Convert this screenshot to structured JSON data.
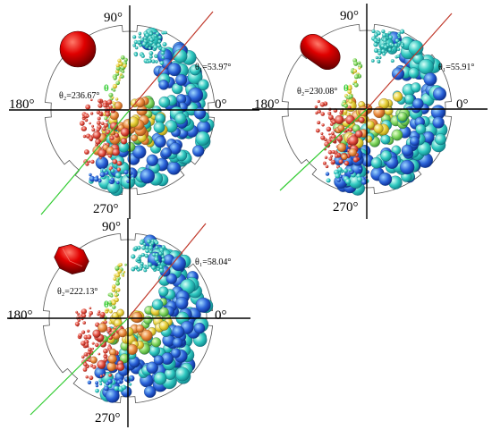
{
  "panels": [
    {
      "id": "sphere",
      "shape": "sphere",
      "label_90": "90°",
      "label_0": "0°",
      "label_180": "180°",
      "label_270": "270°",
      "theta1": "θ₁=53.97°",
      "theta2": "θ₂=236.67°",
      "theta_marker": "θ",
      "theta1_deg": 53.97,
      "theta2_deg": 236.67
    },
    {
      "id": "capsule",
      "shape": "capsule",
      "label_90": "90°",
      "label_0": "0°",
      "label_180": "180°",
      "label_270": "270°",
      "theta1": "θ₁=55.91°",
      "theta2": "θ₂=230.08°",
      "theta_marker": "θ",
      "theta1_deg": 55.91,
      "theta2_deg": 230.08
    },
    {
      "id": "polyhedron",
      "shape": "polyhedron",
      "label_90": "90°",
      "label_0": "0°",
      "label_180": "180°",
      "label_270": "270°",
      "theta1": "θ₁=58.04°",
      "theta2": "θ₂=222.13°",
      "theta_marker": "θ",
      "theta1_deg": 58.04,
      "theta2_deg": 222.13
    }
  ],
  "colors": {
    "theta1_line": "#c0392b",
    "theta2_line": "#33cc33",
    "particle_icon": "#d00000",
    "drum_outline": "#555555"
  }
}
